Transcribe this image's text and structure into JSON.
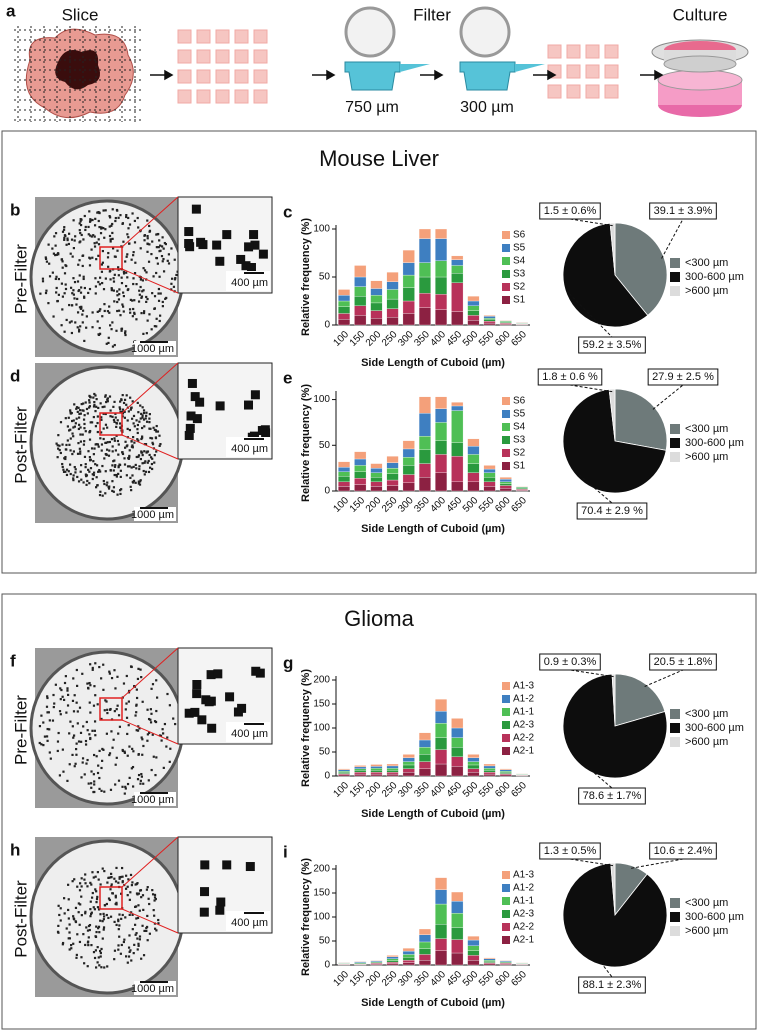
{
  "workflow": {
    "panel": "a",
    "steps": [
      "Slice",
      "Filter",
      "Culture"
    ],
    "filter_sizes": [
      "750 µm",
      "300 µm"
    ]
  },
  "sections": [
    "Mouse Liver",
    "Glioma"
  ],
  "images": [
    {
      "panel": "b",
      "row_label": "Pre-Filter",
      "scale_main": "1000 µm",
      "scale_inset": "400 µm"
    },
    {
      "panel": "d",
      "row_label": "Post-Filter",
      "scale_main": "1000 µm",
      "scale_inset": "400 µm"
    },
    {
      "panel": "f",
      "row_label": "Pre-Filter",
      "scale_main": "1000 µm",
      "scale_inset": "400 µm"
    },
    {
      "panel": "h",
      "row_label": "Post-Filter",
      "scale_main": "1000 µm",
      "scale_inset": "400 µm"
    }
  ],
  "chart_data": [
    {
      "type": "bar",
      "panel": "c",
      "ylabel": "Relative frequency (%)",
      "xlabel": "Side Length of Cuboid (µm)",
      "categories": [
        "100",
        "150",
        "200",
        "250",
        "300",
        "350",
        "400",
        "450",
        "500",
        "550",
        "600",
        "650"
      ],
      "ylim": [
        0,
        100
      ],
      "yticks": [
        0,
        50,
        100
      ],
      "series": [
        {
          "name": "S6",
          "color": "#f4a07a",
          "values": [
            6,
            12,
            8,
            10,
            13,
            10,
            10,
            4,
            5,
            1,
            0.5,
            0.5
          ]
        },
        {
          "name": "S5",
          "color": "#3e7fc1",
          "values": [
            6,
            10,
            7,
            8,
            13,
            25,
            23,
            6,
            5,
            2,
            0.5,
            0.5
          ]
        },
        {
          "name": "S4",
          "color": "#4fbf55",
          "values": [
            6,
            10,
            8,
            10,
            13,
            15,
            17,
            8,
            5,
            1,
            1,
            0.5
          ]
        },
        {
          "name": "S3",
          "color": "#2a9a3e",
          "values": [
            7,
            10,
            8,
            10,
            14,
            17,
            18,
            10,
            5,
            2,
            1,
            0.5
          ]
        },
        {
          "name": "S2",
          "color": "#b8325a",
          "values": [
            6,
            10,
            8,
            9,
            13,
            15,
            16,
            30,
            5,
            2,
            1,
            0.5
          ]
        },
        {
          "name": "S1",
          "color": "#8c2142",
          "values": [
            6,
            10,
            7,
            8,
            12,
            18,
            16,
            14,
            5,
            2,
            1,
            0.5
          ]
        }
      ]
    },
    {
      "type": "pie",
      "categories": [
        "<300 µm",
        "300-600 µm",
        ">600 µm"
      ],
      "values": [
        39.1,
        59.2,
        1.5
      ],
      "value_labels": [
        "39.1 ± 3.9%",
        "59.2 ± 3.5%",
        "1.5 ± 0.6%"
      ],
      "colors": [
        "#6e7a7a",
        "#0d0d0d",
        "#dcdcdc"
      ]
    },
    {
      "type": "bar",
      "panel": "e",
      "ylabel": "Relative frequency (%)",
      "xlabel": "Side Length of Cuboid (µm)",
      "categories": [
        "100",
        "150",
        "200",
        "250",
        "300",
        "350",
        "400",
        "450",
        "500",
        "550",
        "600",
        "650"
      ],
      "ylim": [
        0,
        105
      ],
      "yticks": [
        0,
        50,
        100
      ],
      "series": [
        {
          "name": "S6",
          "color": "#f4a07a",
          "values": [
            6,
            8,
            5,
            7,
            9,
            18,
            13,
            4,
            8,
            4,
            2,
            0.5
          ]
        },
        {
          "name": "S5",
          "color": "#3e7fc1",
          "values": [
            5,
            7,
            5,
            6,
            9,
            25,
            15,
            5,
            9,
            4,
            3,
            0.5
          ]
        },
        {
          "name": "S4",
          "color": "#4fbf55",
          "values": [
            5,
            7,
            5,
            6,
            9,
            15,
            20,
            35,
            10,
            5,
            2,
            1
          ]
        },
        {
          "name": "S3",
          "color": "#2a9a3e",
          "values": [
            6,
            7,
            5,
            7,
            10,
            15,
            15,
            15,
            10,
            5,
            2,
            1
          ]
        },
        {
          "name": "S2",
          "color": "#b8325a",
          "values": [
            5,
            7,
            5,
            6,
            9,
            15,
            20,
            28,
            10,
            5,
            3,
            1
          ]
        },
        {
          "name": "S1",
          "color": "#8c2142",
          "values": [
            5,
            7,
            5,
            6,
            9,
            15,
            20,
            10,
            10,
            5,
            3,
            1
          ]
        }
      ]
    },
    {
      "type": "pie",
      "categories": [
        "<300 µm",
        "300-600 µm",
        ">600 µm"
      ],
      "values": [
        27.9,
        70.4,
        1.8
      ],
      "value_labels": [
        "27.9 ± 2.5 %",
        "70.4 ± 2.9 %",
        "1.8 ± 0.6 %"
      ],
      "colors": [
        "#6e7a7a",
        "#0d0d0d",
        "#dcdcdc"
      ]
    },
    {
      "type": "bar",
      "panel": "g",
      "ylabel": "Relative frequency (%)",
      "xlabel": "Side Length of Cuboid (µm)",
      "categories": [
        "100",
        "150",
        "200",
        "250",
        "300",
        "350",
        "400",
        "450",
        "500",
        "550",
        "600",
        "650"
      ],
      "ylim": [
        0,
        200
      ],
      "yticks": [
        0,
        50,
        100,
        150,
        200
      ],
      "series": [
        {
          "name": "A1-3",
          "color": "#f4a07a",
          "values": [
            2,
            3,
            4,
            4,
            7,
            15,
            25,
            20,
            7,
            4,
            2,
            0.5
          ]
        },
        {
          "name": "A1-2",
          "color": "#3e7fc1",
          "values": [
            3,
            4,
            4,
            5,
            8,
            15,
            25,
            20,
            8,
            5,
            3,
            0.5
          ]
        },
        {
          "name": "A1-1",
          "color": "#4fbf55",
          "values": [
            2,
            3,
            4,
            4,
            7,
            15,
            30,
            20,
            7,
            4,
            2,
            1
          ]
        },
        {
          "name": "A2-3",
          "color": "#2a9a3e",
          "values": [
            3,
            4,
            4,
            4,
            8,
            15,
            25,
            20,
            8,
            4,
            3,
            1
          ]
        },
        {
          "name": "A2-2",
          "color": "#b8325a",
          "values": [
            2,
            4,
            4,
            4,
            7,
            15,
            30,
            20,
            7,
            4,
            2,
            1
          ]
        },
        {
          "name": "A2-1",
          "color": "#8c2142",
          "values": [
            3,
            4,
            4,
            4,
            8,
            15,
            25,
            20,
            8,
            4,
            3,
            1
          ]
        }
      ]
    },
    {
      "type": "pie",
      "categories": [
        "<300 µm",
        "300-600 µm",
        ">600 µm"
      ],
      "values": [
        20.5,
        78.6,
        0.9
      ],
      "value_labels": [
        "20.5 ± 1.8%",
        "78.6 ± 1.7%",
        "0.9 ± 0.3%"
      ],
      "colors": [
        "#6e7a7a",
        "#0d0d0d",
        "#dcdcdc"
      ]
    },
    {
      "type": "bar",
      "panel": "i",
      "ylabel": "Relative frequency (%)",
      "xlabel": "Side Length of Cuboid (µm)",
      "categories": [
        "100",
        "150",
        "200",
        "250",
        "300",
        "350",
        "400",
        "450",
        "500",
        "550",
        "600",
        "650"
      ],
      "ylim": [
        0,
        200
      ],
      "yticks": [
        0,
        50,
        100,
        150,
        200
      ],
      "series": [
        {
          "name": "A1-3",
          "color": "#f4a07a",
          "values": [
            0.5,
            1,
            1,
            3,
            6,
            12,
            25,
            19,
            8,
            2,
            1,
            0.5
          ]
        },
        {
          "name": "A1-2",
          "color": "#3e7fc1",
          "values": [
            1,
            2,
            2,
            4,
            7,
            15,
            30,
            25,
            12,
            3,
            2,
            0.5
          ]
        },
        {
          "name": "A1-1",
          "color": "#4fbf55",
          "values": [
            1,
            1,
            1,
            4,
            6,
            14,
            42,
            30,
            10,
            2,
            1,
            1
          ]
        },
        {
          "name": "A2-3",
          "color": "#2a9a3e",
          "values": [
            1,
            2,
            2,
            3,
            6,
            12,
            30,
            25,
            10,
            3,
            2,
            1
          ]
        },
        {
          "name": "A2-2",
          "color": "#b8325a",
          "values": [
            1,
            1,
            2,
            3,
            5,
            12,
            25,
            28,
            10,
            2,
            2,
            1
          ]
        },
        {
          "name": "A2-1",
          "color": "#8c2142",
          "values": [
            1,
            1,
            2,
            3,
            5,
            10,
            30,
            25,
            10,
            3,
            2,
            1
          ]
        }
      ]
    },
    {
      "type": "pie",
      "categories": [
        "<300 µm",
        "300-600 µm",
        ">600 µm"
      ],
      "values": [
        10.6,
        88.1,
        1.3
      ],
      "value_labels": [
        "10.6 ± 2.4%",
        "88.1 ± 2.3%",
        "1.3 ± 0.5%"
      ],
      "colors": [
        "#6e7a7a",
        "#0d0d0d",
        "#dcdcdc"
      ]
    }
  ]
}
